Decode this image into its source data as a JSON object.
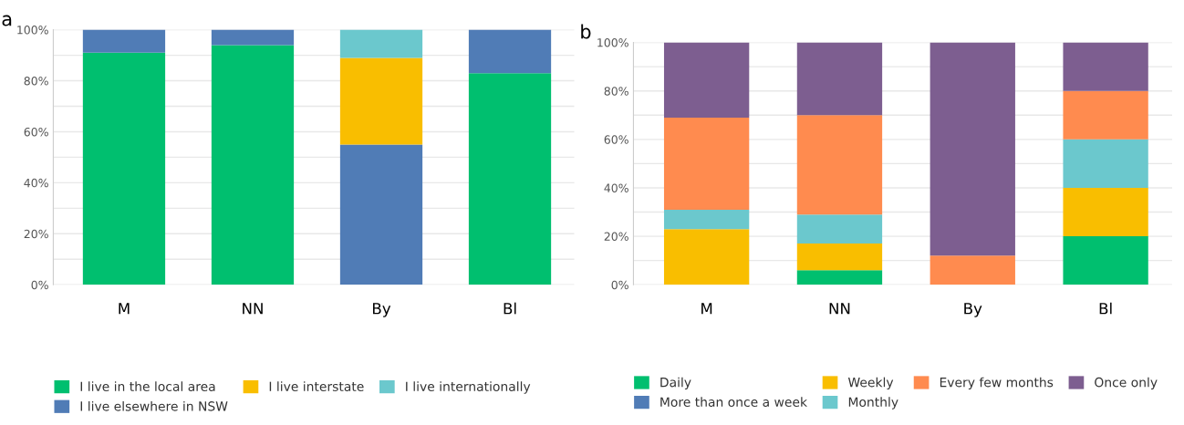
{
  "chart_data": [
    {
      "type": "bar",
      "stacked": true,
      "annotations": [
        "a"
      ],
      "categories": [
        "M",
        "NN",
        "By",
        "Bl"
      ],
      "series": [
        {
          "name": "I live in the local area",
          "color": "#00bf6f",
          "values": [
            91,
            94,
            0,
            83
          ]
        },
        {
          "name": "I live elsewhere in NSW",
          "color": "#507cb6",
          "values": [
            9,
            6,
            55,
            17
          ]
        },
        {
          "name": "I live interstate",
          "color": "#f9be00",
          "values": [
            0,
            0,
            34,
            0
          ]
        },
        {
          "name": "I live internationally",
          "color": "#6bc8cd",
          "values": [
            0,
            0,
            11,
            0
          ]
        }
      ],
      "ylim": [
        0,
        100
      ],
      "yticks": [
        {
          "value": 0,
          "label": "0%"
        },
        {
          "value": 10,
          "label": null
        },
        {
          "value": 20,
          "label": "20%"
        },
        {
          "value": 30,
          "label": null
        },
        {
          "value": 40,
          "label": "40%"
        },
        {
          "value": 50,
          "label": null
        },
        {
          "value": 60,
          "label": "60%"
        },
        {
          "value": 70,
          "label": null
        },
        {
          "value": 80,
          "label": "80%"
        },
        {
          "value": 90,
          "label": null
        },
        {
          "value": 100,
          "label": "100%"
        }
      ],
      "grid": "y",
      "legend": "bottom"
    },
    {
      "type": "bar",
      "stacked": true,
      "annotations": [
        "b"
      ],
      "categories": [
        "M",
        "NN",
        "By",
        "Bl"
      ],
      "series": [
        {
          "name": "Daily",
          "color": "#00bf6f",
          "values": [
            0,
            6,
            0,
            20
          ]
        },
        {
          "name": "More than once a week",
          "color": "#507cb6",
          "values": [
            0,
            0,
            0,
            0
          ]
        },
        {
          "name": "Weekly",
          "color": "#f9be00",
          "values": [
            23,
            11,
            0,
            20
          ]
        },
        {
          "name": "Monthly",
          "color": "#6bc8cd",
          "values": [
            8,
            12,
            0,
            20
          ]
        },
        {
          "name": "Every few months",
          "color": "#ff8b4f",
          "values": [
            38,
            41,
            12,
            20
          ]
        },
        {
          "name": "Once only",
          "color": "#7d5e90",
          "values": [
            31,
            30,
            88,
            20
          ]
        }
      ],
      "ylim": [
        0,
        100
      ],
      "yticks": [
        {
          "value": 0,
          "label": "0%"
        },
        {
          "value": 10,
          "label": null
        },
        {
          "value": 20,
          "label": "20%"
        },
        {
          "value": 30,
          "label": null
        },
        {
          "value": 40,
          "label": "40%"
        },
        {
          "value": 50,
          "label": null
        },
        {
          "value": 60,
          "label": "60%"
        },
        {
          "value": 70,
          "label": null
        },
        {
          "value": 80,
          "label": "80%"
        },
        {
          "value": 90,
          "label": null
        },
        {
          "value": 100,
          "label": "100%"
        }
      ],
      "grid": "y",
      "legend": "bottom"
    }
  ]
}
